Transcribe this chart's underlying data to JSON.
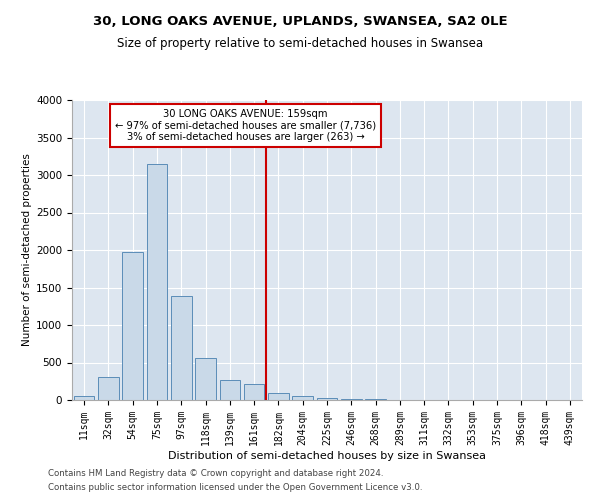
{
  "title": "30, LONG OAKS AVENUE, UPLANDS, SWANSEA, SA2 0LE",
  "subtitle": "Size of property relative to semi-detached houses in Swansea",
  "xlabel": "Distribution of semi-detached houses by size in Swansea",
  "ylabel": "Number of semi-detached properties",
  "footer1": "Contains HM Land Registry data © Crown copyright and database right 2024.",
  "footer2": "Contains public sector information licensed under the Open Government Licence v3.0.",
  "annotation_title": "30 LONG OAKS AVENUE: 159sqm",
  "annotation_line1": "← 97% of semi-detached houses are smaller (7,736)",
  "annotation_line2": "3% of semi-detached houses are larger (263) →",
  "bar_color": "#c9d9e8",
  "bar_edge_color": "#5b8db8",
  "vline_color": "#cc0000",
  "annotation_box_color": "#cc0000",
  "background_color": "#dde6f0",
  "categories": [
    "11sqm",
    "32sqm",
    "54sqm",
    "75sqm",
    "97sqm",
    "118sqm",
    "139sqm",
    "161sqm",
    "182sqm",
    "204sqm",
    "225sqm",
    "246sqm",
    "268sqm",
    "289sqm",
    "311sqm",
    "332sqm",
    "353sqm",
    "375sqm",
    "396sqm",
    "418sqm",
    "439sqm"
  ],
  "values": [
    50,
    310,
    1970,
    3150,
    1390,
    560,
    270,
    210,
    90,
    50,
    30,
    15,
    8,
    5,
    3,
    2,
    1,
    1,
    1,
    0,
    0
  ],
  "ylim": [
    0,
    4000
  ],
  "yticks": [
    0,
    500,
    1000,
    1500,
    2000,
    2500,
    3000,
    3500,
    4000
  ],
  "vline_x": 7.5,
  "figwidth": 6.0,
  "figheight": 5.0,
  "dpi": 100
}
